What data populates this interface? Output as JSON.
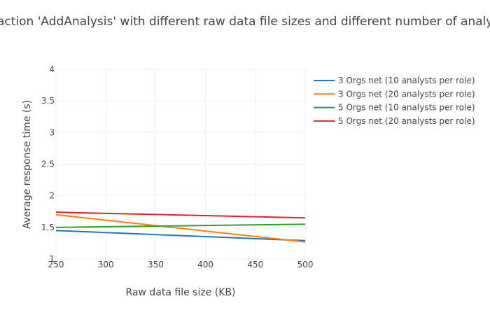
{
  "chart_data": {
    "type": "line",
    "title": "action 'AddAnalysis' with different raw data file sizes and different number of analysts",
    "xlabel": "Raw data file size (KB)",
    "ylabel": "Average response time (s)",
    "xlim": [
      250,
      500
    ],
    "ylim": [
      1,
      4
    ],
    "xticks": [
      250,
      300,
      350,
      400,
      450,
      500
    ],
    "yticks": [
      1,
      1.5,
      2,
      2.5,
      3,
      3.5,
      4
    ],
    "xtick_labels": [
      "250",
      "300",
      "350",
      "400",
      "450",
      "500"
    ],
    "ytick_labels": [
      "1",
      "1.5",
      "2",
      "2.5",
      "3",
      "3.5",
      "4"
    ],
    "grid": true,
    "legend_position": "top-right",
    "x": [
      250,
      500
    ],
    "series": [
      {
        "name": "3 Orgs net (10 analysts per role)",
        "color": "#1f77b4",
        "values": [
          1.45,
          1.29
        ]
      },
      {
        "name": "3 Orgs net (20 analysts per role)",
        "color": "#ff7f0e",
        "values": [
          1.7,
          1.27
        ]
      },
      {
        "name": "5 Orgs net (10 analysts per role)",
        "color": "#2ca02c",
        "values": [
          1.5,
          1.55
        ]
      },
      {
        "name": "5 Orgs net (20 analysts per role)",
        "color": "#d62728",
        "values": [
          1.74,
          1.65
        ]
      }
    ]
  }
}
